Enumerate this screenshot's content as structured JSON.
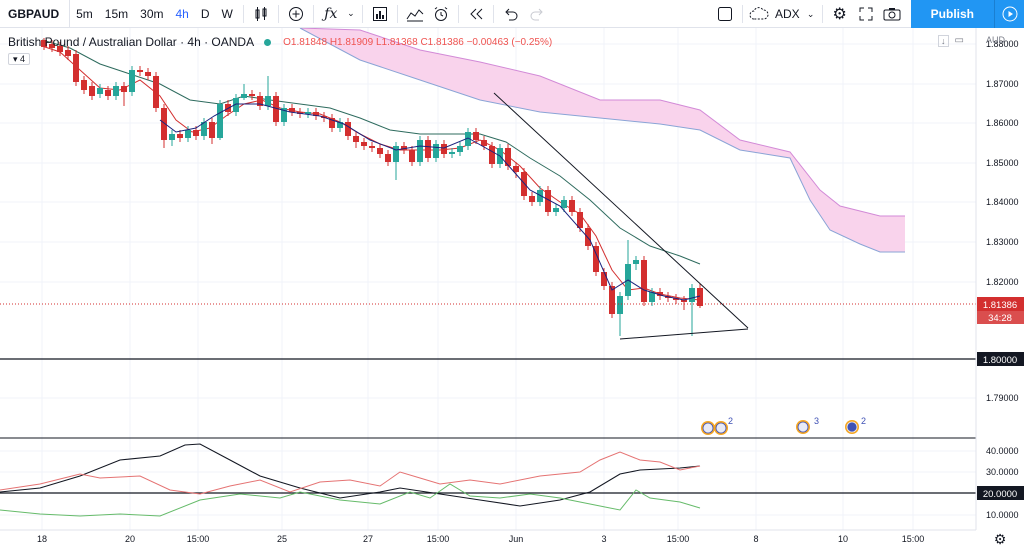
{
  "toolbar": {
    "symbol": "GBPAUD",
    "intervals": [
      "5m",
      "15m",
      "30m",
      "4h",
      "D",
      "W"
    ],
    "active_interval": "4h",
    "indicator": "ADX",
    "publish": "Publish"
  },
  "legend": {
    "name": "British Pound / Australian Dollar · 4h · OANDA",
    "ohlc": "O1.81848  H1.81909  L1.81368  C1.81386  −0.00463 (−0.25%)",
    "indicator_count": "4"
  },
  "price_axis": {
    "currency": "AUD",
    "ticks": [
      "1.88000",
      "1.87000",
      "1.86000",
      "1.85000",
      "1.84000",
      "1.83000",
      "1.82000",
      "1.80000",
      "1.79000"
    ],
    "current_price": "1.81386",
    "countdown": "34:28",
    "level_label": "1.80000"
  },
  "adx_axis": {
    "ticks": [
      "40.0000",
      "30.0000",
      "20.0000",
      "10.0000"
    ],
    "level_label": "20.0000"
  },
  "time_axis": [
    "18",
    "20",
    "15:00",
    "25",
    "27",
    "15:00",
    "Jun",
    "3",
    "15:00",
    "8",
    "10",
    "15:00"
  ],
  "events": [
    {
      "count": "2"
    },
    {
      "count": "3"
    },
    {
      "count": "2"
    }
  ],
  "colors": {
    "up": "#26a69a",
    "down": "#d32f2f",
    "cloud": "#f7c6e8",
    "accent": "#2196f3"
  }
}
